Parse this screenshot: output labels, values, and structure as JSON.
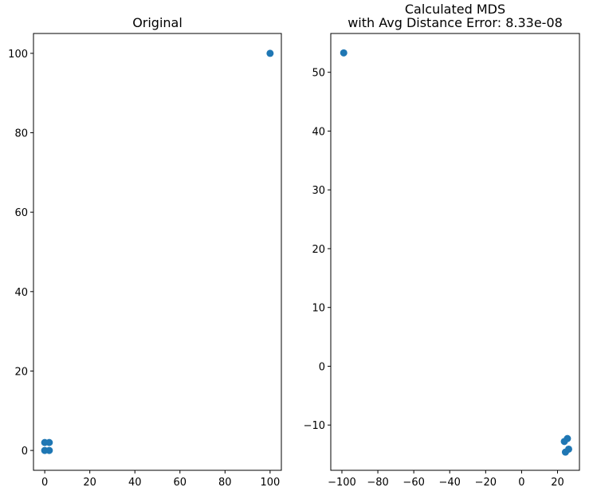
{
  "chart_data": [
    {
      "type": "scatter",
      "title": [
        "Original"
      ],
      "xlim": [
        -5,
        105
      ],
      "ylim": [
        -5,
        105
      ],
      "xticks": [
        0,
        20,
        40,
        60,
        80,
        100
      ],
      "yticks": [
        0,
        20,
        40,
        60,
        80,
        100
      ],
      "color": "#1f77b4",
      "points": [
        {
          "x": 0,
          "y": 0
        },
        {
          "x": 2,
          "y": 0
        },
        {
          "x": 0,
          "y": 2
        },
        {
          "x": 2,
          "y": 2
        },
        {
          "x": 100,
          "y": 100
        }
      ]
    },
    {
      "type": "scatter",
      "title": [
        "Calculated MDS",
        "with Avg Distance Error: 8.33e-08"
      ],
      "xlim": [
        -106.2,
        32.2
      ],
      "ylim": [
        -17.7,
        56.6
      ],
      "xticks": [
        -100,
        -80,
        -60,
        -40,
        -20,
        0,
        20
      ],
      "yticks": [
        -10,
        0,
        10,
        20,
        30,
        40,
        50
      ],
      "color": "#1f77b4",
      "points": [
        {
          "x": -99.0,
          "y": 53.3
        },
        {
          "x": 25.5,
          "y": -12.3
        },
        {
          "x": 23.8,
          "y": -12.8
        },
        {
          "x": 26.2,
          "y": -14.1
        },
        {
          "x": 24.4,
          "y": -14.6
        }
      ]
    }
  ]
}
